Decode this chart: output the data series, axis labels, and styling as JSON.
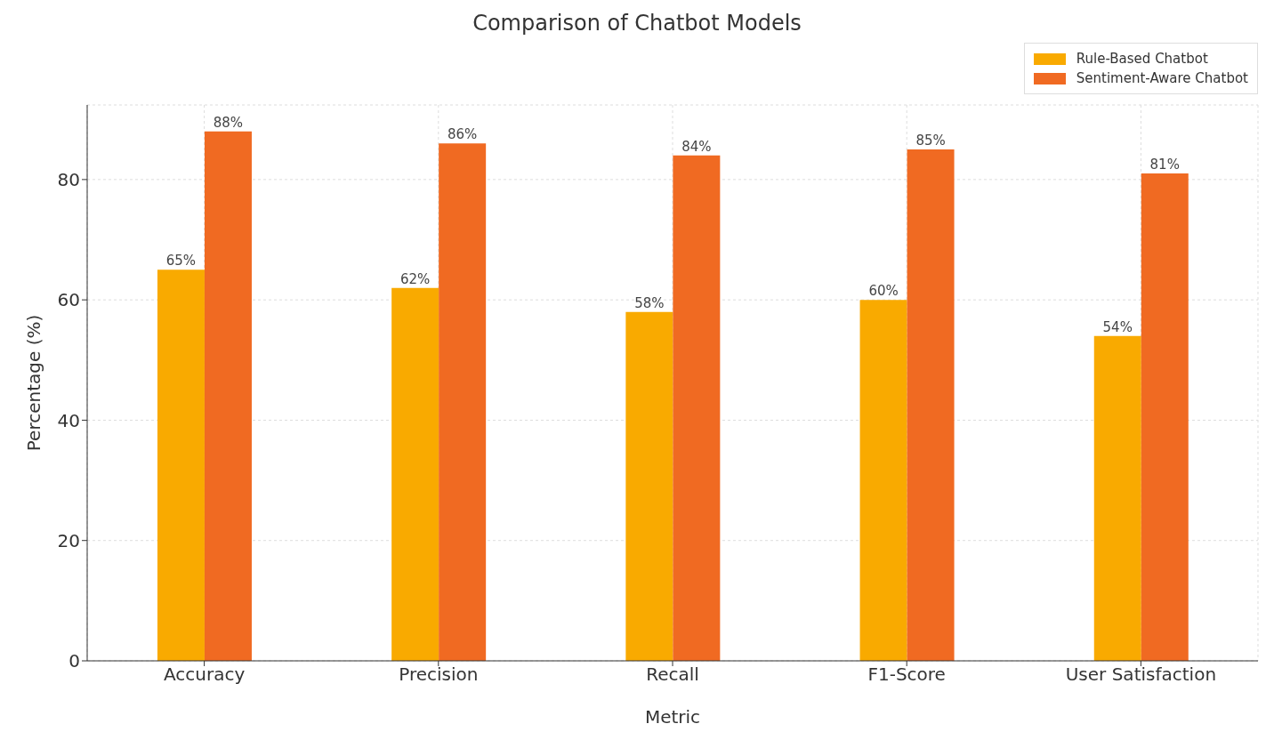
{
  "chart_data": {
    "type": "bar",
    "title": "Comparison of Chatbot Models",
    "xlabel": "Metric",
    "ylabel": "Percentage (%)",
    "categories": [
      "Accuracy",
      "Precision",
      "Recall",
      "F1-Score",
      "User Satisfaction"
    ],
    "series": [
      {
        "name": "Rule-Based Chatbot",
        "color": "#f9aa00",
        "values": [
          65,
          62,
          58,
          60,
          54
        ],
        "value_labels": [
          "65%",
          "62%",
          "58%",
          "60%",
          "54%"
        ]
      },
      {
        "name": "Sentiment-Aware Chatbot",
        "color": "#f06a22",
        "values": [
          88,
          86,
          84,
          85,
          81
        ],
        "value_labels": [
          "88%",
          "86%",
          "84%",
          "85%",
          "81%"
        ]
      }
    ],
    "ylim": [
      0,
      92.4
    ],
    "yticks": [
      0,
      20,
      40,
      60,
      80
    ],
    "grid": true,
    "legend": "top right"
  }
}
